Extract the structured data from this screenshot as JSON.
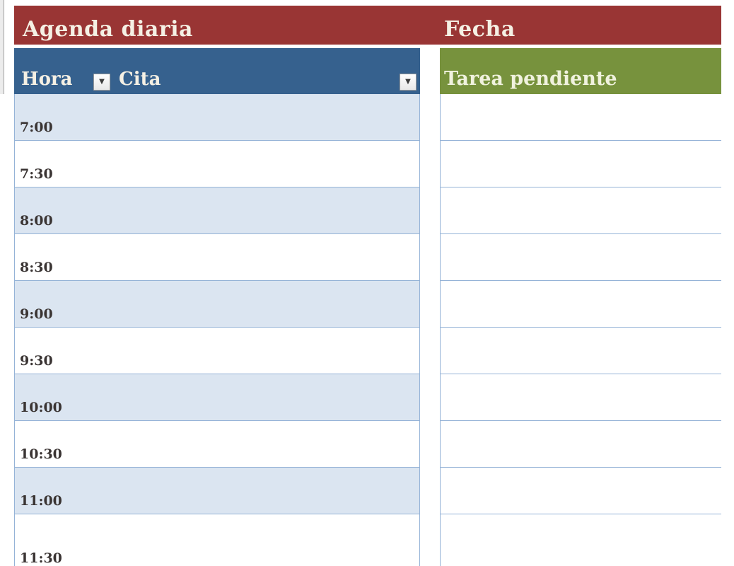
{
  "header": {
    "title": "Agenda diaria",
    "fecha_label": "Fecha"
  },
  "schedule": {
    "columns": [
      {
        "label": "Hora"
      },
      {
        "label": "Cita"
      }
    ],
    "rows": [
      {
        "time": "7:00",
        "cita": ""
      },
      {
        "time": "7:30",
        "cita": ""
      },
      {
        "time": "8:00",
        "cita": ""
      },
      {
        "time": "8:30",
        "cita": ""
      },
      {
        "time": "9:00",
        "cita": ""
      },
      {
        "time": "9:30",
        "cita": ""
      },
      {
        "time": "10:00",
        "cita": ""
      },
      {
        "time": "10:30",
        "cita": ""
      },
      {
        "time": "11:00",
        "cita": ""
      },
      {
        "time": "11:30",
        "cita": ""
      }
    ]
  },
  "tasks": {
    "header_label": "Tarea pendiente",
    "rows": [
      {
        "text": ""
      },
      {
        "text": ""
      },
      {
        "text": ""
      },
      {
        "text": ""
      },
      {
        "text": ""
      },
      {
        "text": ""
      },
      {
        "text": ""
      },
      {
        "text": ""
      },
      {
        "text": ""
      },
      {
        "text": ""
      }
    ]
  },
  "icons": {
    "filter_dropdown": "▼"
  },
  "colors": {
    "title_bar_red": "#993534",
    "schedule_header_blue": "#36618e",
    "tasks_header_green": "#77923d",
    "row_alt_blue": "#dbe5f1",
    "grid_blue": "#95b3d7",
    "header_text": "#f5f0e4",
    "time_text": "#3a3433"
  }
}
